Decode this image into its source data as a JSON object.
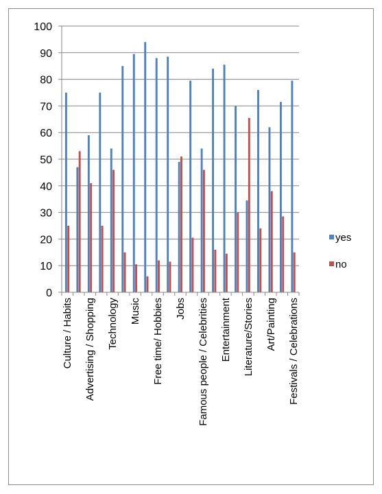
{
  "chart_data": {
    "type": "bar",
    "categories": [
      "Culture / Habits",
      null,
      "Advertising / Shopping",
      null,
      "Technology",
      null,
      "Music",
      null,
      "Free time/ Hobbies",
      null,
      "Jobs",
      null,
      "Famous people / Celebrities",
      null,
      "Entertainment",
      null,
      "Literature/Stories",
      null,
      "Art/Painting",
      null,
      "Festivals / Celebrations"
    ],
    "series": [
      {
        "name": "yes",
        "color": "#4f81bd",
        "values": [
          75,
          47,
          59,
          75,
          54,
          85,
          89.5,
          94,
          88,
          88.5,
          49,
          79.5,
          54,
          84,
          85.5,
          70,
          34.5,
          76,
          62,
          71.5,
          79.5
        ]
      },
      {
        "name": "no",
        "color": "#c0504d",
        "values": [
          25,
          53,
          41,
          25,
          46,
          15,
          10.5,
          6,
          12,
          11.5,
          51,
          20.5,
          46,
          16,
          14.5,
          30,
          65.5,
          24,
          38,
          28.5,
          15
        ]
      }
    ],
    "ylim": [
      0,
      100
    ],
    "yticks": [
      0,
      10,
      20,
      30,
      40,
      50,
      60,
      70,
      80,
      90,
      100
    ],
    "grid": true,
    "legend": "right"
  }
}
